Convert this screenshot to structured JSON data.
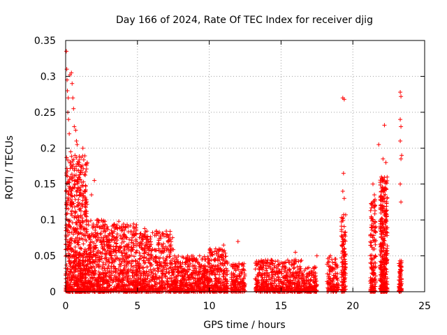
{
  "chart_data": {
    "type": "scatter",
    "title": "Day 166 of 2024, Rate Of TEC Index for receiver djig",
    "xlabel": "GPS time / hours",
    "ylabel": "ROTI / TECUs",
    "xlim": [
      0,
      25
    ],
    "ylim": [
      0,
      0.35
    ],
    "xticks": [
      0,
      5,
      10,
      15,
      20,
      25
    ],
    "xtick_labels": [
      "0",
      "5",
      "10",
      "15",
      "20",
      "25"
    ],
    "yticks": [
      0,
      0.05,
      0.1,
      0.15,
      0.2,
      0.25,
      0.3,
      0.35
    ],
    "ytick_labels": [
      "0",
      "0.05",
      "0.1",
      "0.15",
      "0.2",
      "0.25",
      "0.3",
      "0.35"
    ],
    "grid": true,
    "marker": "+",
    "color": "#ff0000",
    "series": [
      {
        "name": "ROTI",
        "points": [
          [
            0.05,
            0.335
          ],
          [
            0.08,
            0.31
          ],
          [
            0.1,
            0.295
          ],
          [
            0.12,
            0.28
          ],
          [
            0.15,
            0.25
          ],
          [
            0.18,
            0.27
          ],
          [
            0.3,
            0.302
          ],
          [
            0.4,
            0.305
          ],
          [
            0.45,
            0.29
          ],
          [
            0.5,
            0.27
          ],
          [
            0.55,
            0.255
          ],
          [
            0.6,
            0.23
          ],
          [
            0.7,
            0.225
          ],
          [
            0.75,
            0.21
          ],
          [
            0.2,
            0.24
          ],
          [
            0.25,
            0.22
          ],
          [
            0.35,
            0.195
          ],
          [
            0.65,
            0.19
          ],
          [
            0.8,
            0.205
          ],
          [
            19.3,
            0.27
          ],
          [
            19.4,
            0.268
          ],
          [
            19.35,
            0.165
          ],
          [
            19.3,
            0.14
          ],
          [
            19.4,
            0.13
          ],
          [
            22.2,
            0.232
          ],
          [
            22.1,
            0.185
          ],
          [
            21.8,
            0.205
          ],
          [
            22.3,
            0.18
          ],
          [
            21.4,
            0.15
          ],
          [
            21.5,
            0.135
          ],
          [
            23.3,
            0.278
          ],
          [
            23.35,
            0.272
          ],
          [
            23.3,
            0.24
          ],
          [
            23.35,
            0.23
          ],
          [
            23.3,
            0.21
          ],
          [
            23.4,
            0.19
          ],
          [
            23.35,
            0.185
          ],
          [
            23.3,
            0.15
          ],
          [
            23.35,
            0.125
          ],
          [
            12.0,
            0.07
          ],
          [
            16.0,
            0.055
          ],
          [
            17.5,
            0.05
          ],
          [
            11.0,
            0.065
          ],
          [
            7.0,
            0.08
          ],
          [
            4.5,
            0.092
          ],
          [
            3.7,
            0.098
          ],
          [
            5.5,
            0.088
          ],
          [
            2.2,
            0.1
          ],
          [
            1.8,
            0.135
          ],
          [
            2.0,
            0.155
          ],
          [
            1.5,
            0.18
          ],
          [
            1.2,
            0.2
          ]
        ],
        "clusters": [
          {
            "x": [
              0.0,
              1.5
            ],
            "ymax": 0.19,
            "n": 700
          },
          {
            "x": [
              1.5,
              3.0
            ],
            "ymax": 0.1,
            "n": 400
          },
          {
            "x": [
              3.0,
              5.0
            ],
            "ymax": 0.095,
            "n": 450
          },
          {
            "x": [
              5.0,
              7.5
            ],
            "ymax": 0.085,
            "n": 500
          },
          {
            "x": [
              7.5,
              10.0
            ],
            "ymax": 0.05,
            "n": 450
          },
          {
            "x": [
              10.0,
              11.3
            ],
            "ymax": 0.06,
            "n": 250
          },
          {
            "x": [
              11.5,
              12.5
            ],
            "ymax": 0.04,
            "n": 150
          },
          {
            "x": [
              13.2,
              16.5
            ],
            "ymax": 0.045,
            "n": 500
          },
          {
            "x": [
              16.5,
              17.5
            ],
            "ymax": 0.035,
            "n": 150
          },
          {
            "x": [
              18.2,
              19.0
            ],
            "ymax": 0.05,
            "n": 120
          },
          {
            "x": [
              19.2,
              19.5
            ],
            "ymax": 0.11,
            "n": 120
          },
          {
            "x": [
              21.2,
              21.6
            ],
            "ymax": 0.13,
            "n": 150
          },
          {
            "x": [
              21.9,
              22.4
            ],
            "ymax": 0.16,
            "n": 350
          },
          {
            "x": [
              23.2,
              23.4
            ],
            "ymax": 0.045,
            "n": 80
          }
        ]
      }
    ]
  }
}
